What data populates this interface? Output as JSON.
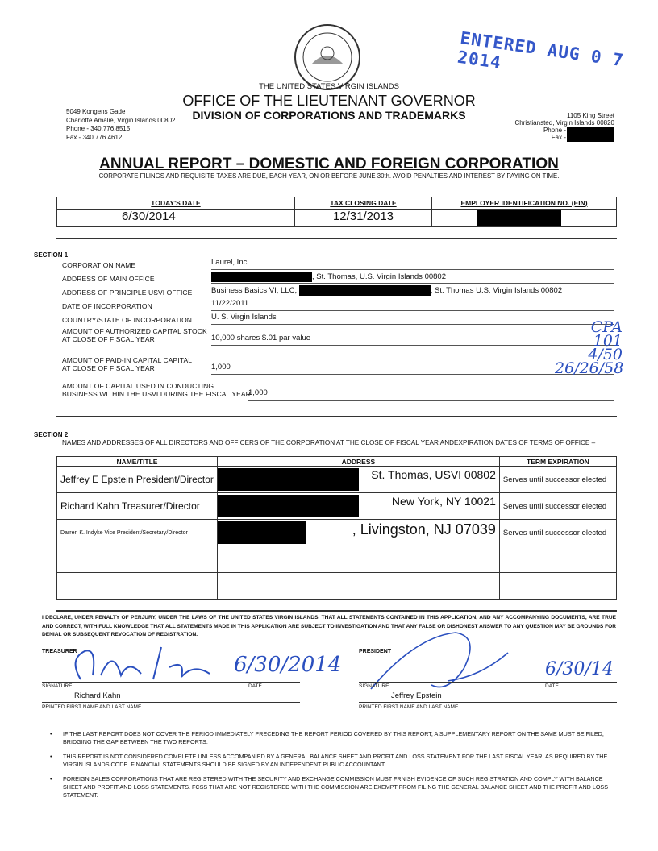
{
  "header": {
    "country": "THE UNITED STATES VIRGIN ISLANDS",
    "office": "OFFICE OF THE LIEUTENANT GOVERNOR",
    "division": "DIVISION OF CORPORATIONS AND TRADEMARKS",
    "left_address": [
      "5049 Kongens Gade",
      "Charlotte Amalie, Virgin Islands 00802",
      "Phone - 340.776.8515",
      "Fax - 340.776.4612"
    ],
    "right_address": [
      "1105 King Street",
      "Christiansted, Virgin Islands 00820",
      "Phone -",
      "Fax -"
    ],
    "stamp": "ENTERED AUG 0 7 2014"
  },
  "title": "ANNUAL REPORT – DOMESTIC AND FOREIGN CORPORATION",
  "subtitle": "CORPORATE FILINGS AND REQUISITE TAXES ARE DUE, EACH YEAR, ON OR BEFORE JUNE 30th.  AVOID PENALTIES AND INTEREST BY PAYING ON TIME.",
  "dates": {
    "todays_date_label": "TODAY'S DATE",
    "todays_date": "6/30/2014",
    "tax_closing_label": "TAX CLOSING DATE",
    "tax_closing": "12/31/2013",
    "ein_label": "EMPLOYER IDENTIFICATION NO. (EIN)"
  },
  "section1": {
    "heading": "SECTION 1",
    "rows": [
      {
        "label": "CORPORATION NAME",
        "value": "Laurel, Inc."
      },
      {
        "label": "ADDRESS OF MAIN OFFICE",
        "value": ", St. Thomas, U.S. Virgin Islands 00802"
      },
      {
        "label": "ADDRESS OF PRINCIPLE USVI OFFICE",
        "value_prefix": "Business Basics VI, LLC,",
        "value": ", St. Thomas U.S. Virgin Islands 00802"
      },
      {
        "label": "DATE OF INCORPORATION",
        "value": "11/22/2011"
      },
      {
        "label": "COUNTRY/STATE OF INCORPORATION",
        "value": "U. S. Virgin Islands"
      },
      {
        "label": "AMOUNT OF AUTHORIZED CAPITAL STOCK",
        "label2": "AT CLOSE OF FISCAL YEAR",
        "value": "10,000 shares $.01 par value"
      },
      {
        "label": "AMOUNT OF PAID-IN CAPITAL CAPITAL",
        "label2": "AT CLOSE OF FISCAL YEAR",
        "value": "1,000"
      },
      {
        "label": "AMOUNT OF CAPITAL USED IN CONDUCTING",
        "label2": "BUSINESS WITHIN THE USVI DURING THE FISCAL YEAR",
        "value": "1,000"
      }
    ],
    "handwritten_notes": [
      "CPA",
      "101",
      "4/50",
      "26/26/58"
    ]
  },
  "section2": {
    "heading": "SECTION 2",
    "description": "NAMES AND ADDRESSES OF ALL DIRECTORS AND OFFICERS OF THE CORPORATION AT THE CLOSE OF FISCAL YEAR ANDEXPIRATION DATES OF TERMS OF OFFICE –",
    "columns": [
      "NAME/TITLE",
      "ADDRESS",
      "TERM EXPIRATION"
    ],
    "rows": [
      {
        "name": "Jeffrey E Epstein President/Director",
        "address": "St. Thomas, USVI 00802",
        "term": "Serves until successor elected"
      },
      {
        "name": "Richard Kahn Treasurer/Director",
        "address": "New York, NY 10021",
        "term": "Serves until successor elected"
      },
      {
        "name": "Darren K. Indyke Vice President/Secretary/Director",
        "address": ", Livingston, NJ 07039",
        "term": "Serves until successor elected"
      },
      {
        "name": "",
        "address": "",
        "term": ""
      },
      {
        "name": "",
        "address": "",
        "term": ""
      }
    ]
  },
  "declaration": "I DECLARE, UNDER PENALTY OF PERJURY, UNDER THE LAWS OF THE UNITED STATES VIRGIN ISLANDS, THAT ALL STATEMENTS CONTAINED IN THIS APPLICATION, AND ANY ACCOMPANYING DOCUMENTS, ARE TRUE AND CORRECT, WITH FULL KNOWLEDGE THAT ALL STATEMENTS MADE IN THIS APPLICATION ARE SUBJECT TO INVESTIGATION AND THAT ANY FALSE OR DISHONEST ANSWER TO ANY QUESTION MAY BE GROUNDS FOR DENIAL OR SUBSEQUENT REVOCATION OF REGISTRATION.",
  "signatures": {
    "treasurer": {
      "label": "TREASURER",
      "signature_label": "SIGNATURE",
      "date_label": "DATE",
      "date": "6/30/2014",
      "name": "Richard Kahn",
      "name_label": "PRINTED FIRST NAME AND LAST NAME"
    },
    "president": {
      "label": "PRESIDENT",
      "signature_label": "SIGNATURE",
      "date_label": "DATE",
      "date": "6/30/14",
      "name": "Jeffrey Epstein",
      "name_label": "PRINTED FIRST NAME AND LAST NAME"
    }
  },
  "notes": [
    "IF THE LAST REPORT DOES NOT COVER THE PERIOD IMMEDIATELY PRECEDING THE REPORT PERIOD COVERED BY THIS REPORT, A SUPPLEMENTARY REPORT ON THE SAME MUST BE FILED, BRIDGING THE GAP BETWEEN THE TWO REPORTS.",
    "THIS REPORT IS NOT CONSIDERED COMPLETE UNLESS ACCOMPANIED BY A GENERAL BALANCE SHEET AND PROFIT AND LOSS STATEMENT FOR THE LAST FISCAL YEAR, AS REQUIRED BY THE VIRGIN ISLANDS CODE.  FINANCIAL STATEMENTS SHOULD BE SIGNED BY AN INDEPENDENT PUBLIC ACCOUNTANT.",
    "FOREIGN SALES CORPORATIONS THAT ARE REGISTERED WITH THE SECURITY AND EXCHANGE COMMISSION MUST FRNISH EVIDENCE OF SUCH REGISTRATION AND COMPLY WITH BALANCE SHEET AND PROFIT AND LOSS STATEMENTS.  FCSS THAT ARE NOT REGISTERED WITH THE COMMISSION ARE EXEMPT FROM FILING THE GENERAL BALANCE SHEET AND THE PROFIT AND LOSS STATEMENT."
  ],
  "colors": {
    "ink": "#2a4fbf",
    "stamp": "#3457c9"
  }
}
